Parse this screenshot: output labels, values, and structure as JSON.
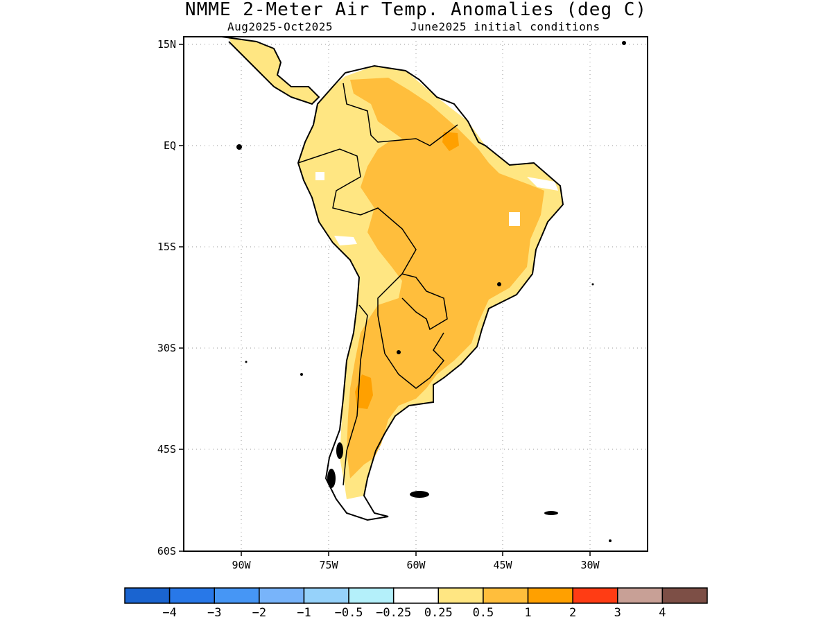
{
  "title": "NMME 2-Meter Air Temp. Anomalies (deg C)",
  "subtitle_left": "Aug2025-Oct2025",
  "subtitle_right": "June2025 initial conditions",
  "map": {
    "lat_labels": [
      "15N",
      "EQ",
      "15S",
      "30S",
      "45S",
      "60S"
    ],
    "lon_labels": [
      "90W",
      "75W",
      "60W",
      "45W",
      "30W"
    ],
    "lat_range": [
      15,
      -60
    ],
    "lon_range": [
      -100,
      -20
    ],
    "grid": "dotted"
  },
  "colorbar": {
    "colors": [
      "#1a64d0",
      "#2878e8",
      "#4696f5",
      "#78b4fa",
      "#96d2fa",
      "#b4f0fa",
      "#ffffff",
      "#ffe682",
      "#ffbe3c",
      "#ffa000",
      "#ff3c14",
      "#c8a096",
      "#7d4f46"
    ],
    "tick_labels": [
      "−4",
      "−3",
      "−2",
      "−1",
      "−0.5",
      "−0.25",
      "0.25",
      "0.5",
      "1",
      "2",
      "3",
      "4"
    ]
  },
  "legend_fill": {
    "light": "#ffe682",
    "medium": "#ffbe3c",
    "strong": "#ffa000"
  }
}
